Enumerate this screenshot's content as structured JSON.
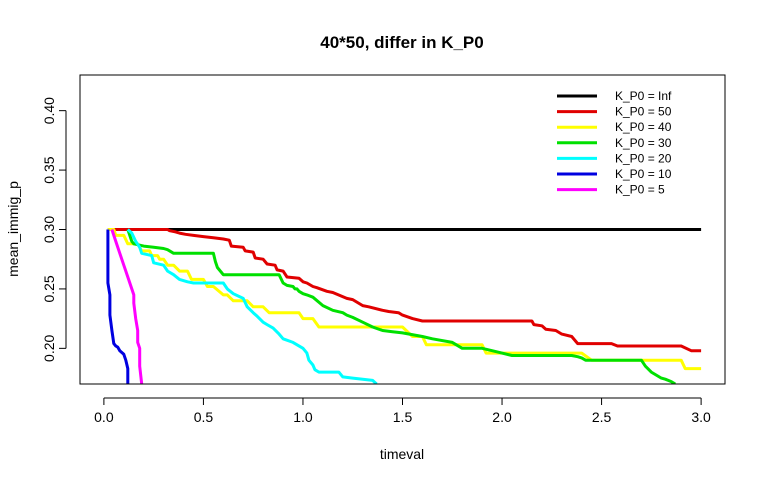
{
  "chart_data": {
    "type": "line",
    "title": "40*50, differ in K_P0",
    "xlabel": "timeval",
    "ylabel": "mean_immig_p",
    "xlim": [
      -0.12,
      3.12
    ],
    "ylim": [
      0.17,
      0.43
    ],
    "xticks": [
      0.0,
      0.5,
      1.0,
      1.5,
      2.0,
      2.5,
      3.0
    ],
    "xtick_labels": [
      "0.0",
      "0.5",
      "1.0",
      "1.5",
      "2.0",
      "2.5",
      "3.0"
    ],
    "yticks": [
      0.2,
      0.25,
      0.3,
      0.35,
      0.4
    ],
    "ytick_labels": [
      "0.20",
      "0.25",
      "0.30",
      "0.35",
      "0.40"
    ],
    "legend_position": "top-right",
    "series": [
      {
        "name": "K_P0 = Inf",
        "color": "#000000",
        "x": [
          0.02,
          3.0
        ],
        "y": [
          0.3,
          0.3
        ]
      },
      {
        "name": "K_P0 = 50",
        "color": "#e00000",
        "x": [
          0.02,
          0.32,
          0.33,
          0.36,
          0.38,
          0.41,
          0.45,
          0.5,
          0.55,
          0.6,
          0.63,
          0.64,
          0.7,
          0.71,
          0.75,
          0.76,
          0.8,
          0.82,
          0.86,
          0.87,
          0.9,
          0.92,
          0.98,
          1.0,
          1.02,
          1.05,
          1.07,
          1.12,
          1.15,
          1.22,
          1.25,
          1.3,
          1.33,
          1.4,
          1.43,
          1.48,
          1.5,
          1.55,
          1.6,
          2.15,
          2.16,
          2.2,
          2.22,
          2.27,
          2.3,
          2.35,
          2.38,
          2.55,
          2.58,
          2.9,
          2.95,
          3.0
        ],
        "y": [
          0.3,
          0.3,
          0.299,
          0.298,
          0.297,
          0.296,
          0.295,
          0.294,
          0.293,
          0.292,
          0.291,
          0.286,
          0.285,
          0.282,
          0.281,
          0.276,
          0.275,
          0.271,
          0.27,
          0.266,
          0.265,
          0.26,
          0.259,
          0.256,
          0.255,
          0.252,
          0.251,
          0.248,
          0.247,
          0.242,
          0.241,
          0.236,
          0.235,
          0.232,
          0.231,
          0.23,
          0.228,
          0.225,
          0.223,
          0.223,
          0.22,
          0.219,
          0.216,
          0.215,
          0.212,
          0.21,
          0.204,
          0.204,
          0.202,
          0.202,
          0.198,
          0.198
        ]
      },
      {
        "name": "K_P0 = 40",
        "color": "#ffff00",
        "x": [
          0.02,
          0.05,
          0.06,
          0.1,
          0.12,
          0.17,
          0.19,
          0.23,
          0.24,
          0.27,
          0.28,
          0.3,
          0.32,
          0.35,
          0.38,
          0.42,
          0.44,
          0.5,
          0.52,
          0.55,
          0.6,
          0.62,
          0.65,
          0.72,
          0.75,
          0.8,
          0.83,
          0.98,
          1.0,
          1.05,
          1.08,
          1.5,
          1.55,
          1.6,
          1.62,
          1.9,
          1.92,
          2.4,
          2.45,
          2.9,
          2.92,
          3.0
        ],
        "y": [
          0.3,
          0.3,
          0.295,
          0.295,
          0.288,
          0.288,
          0.282,
          0.282,
          0.278,
          0.278,
          0.275,
          0.275,
          0.27,
          0.27,
          0.265,
          0.265,
          0.258,
          0.258,
          0.252,
          0.252,
          0.245,
          0.245,
          0.24,
          0.24,
          0.235,
          0.235,
          0.23,
          0.23,
          0.225,
          0.225,
          0.218,
          0.218,
          0.21,
          0.21,
          0.203,
          0.203,
          0.196,
          0.196,
          0.19,
          0.19,
          0.183,
          0.183
        ]
      },
      {
        "name": "K_P0 = 30",
        "color": "#00e000",
        "x": [
          0.12,
          0.13,
          0.14,
          0.15,
          0.2,
          0.25,
          0.3,
          0.32,
          0.35,
          0.4,
          0.5,
          0.55,
          0.56,
          0.57,
          0.6,
          0.65,
          0.7,
          0.75,
          0.8,
          0.88,
          0.9,
          0.92,
          0.95,
          0.96,
          0.97,
          0.98,
          1.0,
          1.02,
          1.05,
          1.1,
          1.15,
          1.2,
          1.22,
          1.25,
          1.3,
          1.35,
          1.4,
          1.45,
          1.5,
          1.6,
          1.65,
          1.75,
          1.8,
          1.9,
          1.95,
          2.0,
          2.05,
          2.35,
          2.38,
          2.4,
          2.42,
          2.7,
          2.72,
          2.75,
          2.8,
          2.82,
          2.85,
          2.87
        ],
        "y": [
          0.3,
          0.295,
          0.29,
          0.288,
          0.286,
          0.285,
          0.284,
          0.283,
          0.28,
          0.28,
          0.28,
          0.28,
          0.273,
          0.268,
          0.262,
          0.262,
          0.262,
          0.262,
          0.262,
          0.262,
          0.255,
          0.253,
          0.252,
          0.25,
          0.25,
          0.248,
          0.246,
          0.245,
          0.243,
          0.236,
          0.232,
          0.23,
          0.228,
          0.226,
          0.222,
          0.218,
          0.215,
          0.214,
          0.213,
          0.21,
          0.208,
          0.205,
          0.2,
          0.2,
          0.198,
          0.196,
          0.194,
          0.194,
          0.193,
          0.192,
          0.19,
          0.19,
          0.185,
          0.18,
          0.175,
          0.174,
          0.172,
          0.17
        ]
      },
      {
        "name": "K_P0 = 20",
        "color": "#00ffff",
        "x": [
          0.12,
          0.14,
          0.16,
          0.18,
          0.19,
          0.24,
          0.25,
          0.3,
          0.32,
          0.35,
          0.38,
          0.42,
          0.45,
          0.5,
          0.55,
          0.6,
          0.62,
          0.65,
          0.7,
          0.72,
          0.75,
          0.77,
          0.8,
          0.82,
          0.85,
          0.88,
          0.9,
          0.95,
          1.0,
          1.02,
          1.03,
          1.05,
          1.06,
          1.08,
          1.1,
          1.18,
          1.2,
          1.25,
          1.3,
          1.35,
          1.37
        ],
        "y": [
          0.3,
          0.297,
          0.29,
          0.285,
          0.28,
          0.278,
          0.272,
          0.27,
          0.265,
          0.262,
          0.258,
          0.256,
          0.255,
          0.255,
          0.255,
          0.255,
          0.25,
          0.246,
          0.242,
          0.235,
          0.23,
          0.227,
          0.222,
          0.22,
          0.217,
          0.212,
          0.208,
          0.205,
          0.2,
          0.196,
          0.19,
          0.186,
          0.182,
          0.18,
          0.18,
          0.18,
          0.176,
          0.175,
          0.174,
          0.173,
          0.17
        ]
      },
      {
        "name": "K_P0 = 10",
        "color": "#0000e0",
        "x": [
          0.02,
          0.02,
          0.02,
          0.02,
          0.03,
          0.03,
          0.03,
          0.04,
          0.05,
          0.06,
          0.07,
          0.08,
          0.1,
          0.11,
          0.12,
          0.12
        ],
        "y": [
          0.3,
          0.285,
          0.275,
          0.255,
          0.245,
          0.238,
          0.228,
          0.215,
          0.204,
          0.202,
          0.201,
          0.198,
          0.195,
          0.19,
          0.183,
          0.17
        ]
      },
      {
        "name": "K_P0 = 5",
        "color": "#ff00ff",
        "x": [
          0.04,
          0.06,
          0.08,
          0.1,
          0.12,
          0.14,
          0.15,
          0.15,
          0.16,
          0.17,
          0.17,
          0.18,
          0.18,
          0.18,
          0.19
        ],
        "y": [
          0.3,
          0.29,
          0.28,
          0.27,
          0.26,
          0.25,
          0.245,
          0.238,
          0.225,
          0.215,
          0.205,
          0.2,
          0.195,
          0.185,
          0.17
        ]
      }
    ]
  }
}
